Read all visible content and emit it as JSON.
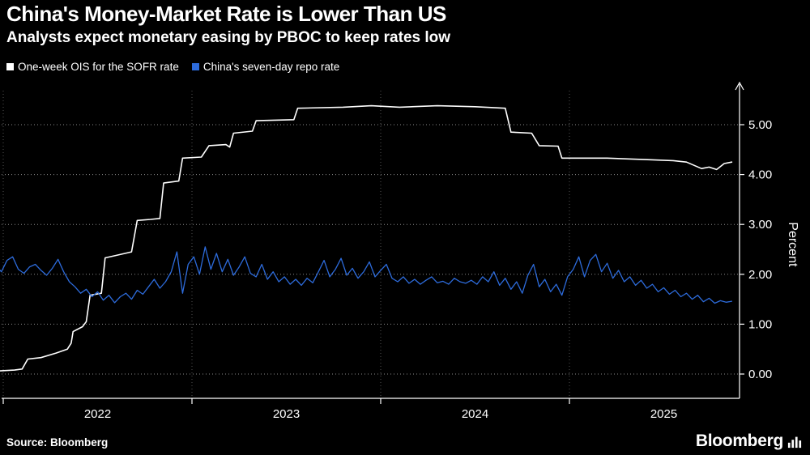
{
  "header": {
    "title": "China's Money-Market Rate is Lower Than US",
    "subtitle": "Analysts expect monetary easing by PBOC to keep rates low"
  },
  "legend": [
    {
      "label": "One-week OIS for the SOFR rate",
      "color": "#ffffff"
    },
    {
      "label": "China's seven-day repo rate",
      "color": "#2d6bdb"
    }
  ],
  "footer": {
    "source": "Source: Bloomberg",
    "brand": "Bloomberg"
  },
  "colors": {
    "background": "#000000",
    "text": "#ffffff",
    "sofr_line": "#ffffff",
    "repo_line": "#2d6bdb"
  },
  "chart_data": {
    "type": "line",
    "title": "China's Money-Market Rate is Lower Than US",
    "ylabel": "Percent",
    "grid": "dotted",
    "legend_position": "top-left",
    "x_range": [
      2021.96,
      2025.9
    ],
    "y_range": [
      -0.4,
      5.9
    ],
    "x_ticks": [
      2022,
      2023,
      2024,
      2025
    ],
    "y_ticks": [
      {
        "v": 0,
        "label": "0.00"
      },
      {
        "v": 1,
        "label": "1.00"
      },
      {
        "v": 2,
        "label": "2.00"
      },
      {
        "v": 3,
        "label": "3.00"
      },
      {
        "v": 4,
        "label": "4.00"
      },
      {
        "v": 5,
        "label": "5.00"
      }
    ],
    "series": [
      {
        "name": "One-week OIS for the SOFR rate",
        "color": "#ffffff",
        "width": 1.6,
        "points": [
          [
            2021.96,
            0.06
          ],
          [
            2022.06,
            0.08
          ],
          [
            2022.1,
            0.1
          ],
          [
            2022.13,
            0.3
          ],
          [
            2022.2,
            0.33
          ],
          [
            2022.28,
            0.42
          ],
          [
            2022.34,
            0.5
          ],
          [
            2022.36,
            0.62
          ],
          [
            2022.37,
            0.85
          ],
          [
            2022.42,
            0.95
          ],
          [
            2022.44,
            1.05
          ],
          [
            2022.46,
            1.58
          ],
          [
            2022.52,
            1.62
          ],
          [
            2022.54,
            2.33
          ],
          [
            2022.6,
            2.38
          ],
          [
            2022.68,
            2.45
          ],
          [
            2022.71,
            3.08
          ],
          [
            2022.78,
            3.1
          ],
          [
            2022.83,
            3.12
          ],
          [
            2022.85,
            3.83
          ],
          [
            2022.93,
            3.87
          ],
          [
            2022.95,
            4.33
          ],
          [
            2023.05,
            4.35
          ],
          [
            2023.09,
            4.58
          ],
          [
            2023.18,
            4.6
          ],
          [
            2023.2,
            4.55
          ],
          [
            2023.22,
            4.83
          ],
          [
            2023.32,
            4.87
          ],
          [
            2023.34,
            5.08
          ],
          [
            2023.54,
            5.1
          ],
          [
            2023.56,
            5.33
          ],
          [
            2023.8,
            5.35
          ],
          [
            2023.95,
            5.38
          ],
          [
            2024.1,
            5.35
          ],
          [
            2024.3,
            5.38
          ],
          [
            2024.5,
            5.36
          ],
          [
            2024.66,
            5.33
          ],
          [
            2024.69,
            4.85
          ],
          [
            2024.8,
            4.83
          ],
          [
            2024.84,
            4.58
          ],
          [
            2024.94,
            4.57
          ],
          [
            2024.96,
            4.33
          ],
          [
            2025.2,
            4.33
          ],
          [
            2025.4,
            4.3
          ],
          [
            2025.55,
            4.28
          ],
          [
            2025.62,
            4.25
          ],
          [
            2025.7,
            4.12
          ],
          [
            2025.74,
            4.15
          ],
          [
            2025.78,
            4.1
          ],
          [
            2025.82,
            4.22
          ],
          [
            2025.86,
            4.25
          ]
        ]
      },
      {
        "name": "China's seven-day repo rate",
        "color": "#2d6bdb",
        "width": 1.3,
        "x_start": 2021.96,
        "x_step": 0.03,
        "values": [
          2.18,
          2.05,
          2.28,
          2.35,
          2.1,
          2.02,
          2.15,
          2.2,
          2.08,
          1.98,
          2.12,
          2.3,
          2.05,
          1.85,
          1.75,
          1.62,
          1.7,
          1.55,
          1.65,
          1.48,
          1.58,
          1.43,
          1.55,
          1.62,
          1.5,
          1.68,
          1.6,
          1.75,
          1.9,
          1.72,
          1.85,
          2.05,
          2.45,
          1.62,
          2.2,
          2.35,
          2.0,
          2.55,
          2.1,
          2.42,
          2.05,
          2.3,
          1.98,
          2.15,
          2.35,
          2.02,
          1.95,
          2.2,
          1.9,
          2.05,
          1.85,
          1.95,
          1.8,
          1.9,
          1.78,
          1.92,
          1.83,
          2.05,
          2.28,
          1.95,
          2.1,
          2.32,
          1.98,
          2.12,
          1.92,
          2.05,
          2.25,
          1.95,
          2.08,
          2.2,
          1.92,
          1.85,
          1.95,
          1.82,
          1.9,
          1.8,
          1.88,
          1.95,
          1.83,
          1.86,
          1.8,
          1.92,
          1.85,
          1.82,
          1.88,
          1.8,
          1.95,
          1.85,
          2.05,
          1.78,
          1.92,
          1.7,
          1.85,
          1.62,
          1.98,
          2.2,
          1.75,
          1.9,
          1.65,
          1.8,
          1.58,
          1.95,
          2.1,
          2.35,
          1.95,
          2.28,
          2.4,
          2.05,
          2.22,
          1.92,
          2.08,
          1.85,
          1.95,
          1.78,
          1.88,
          1.72,
          1.8,
          1.65,
          1.73,
          1.6,
          1.68,
          1.55,
          1.62,
          1.5,
          1.58,
          1.45,
          1.52,
          1.42,
          1.47,
          1.44,
          1.46
        ]
      }
    ]
  }
}
